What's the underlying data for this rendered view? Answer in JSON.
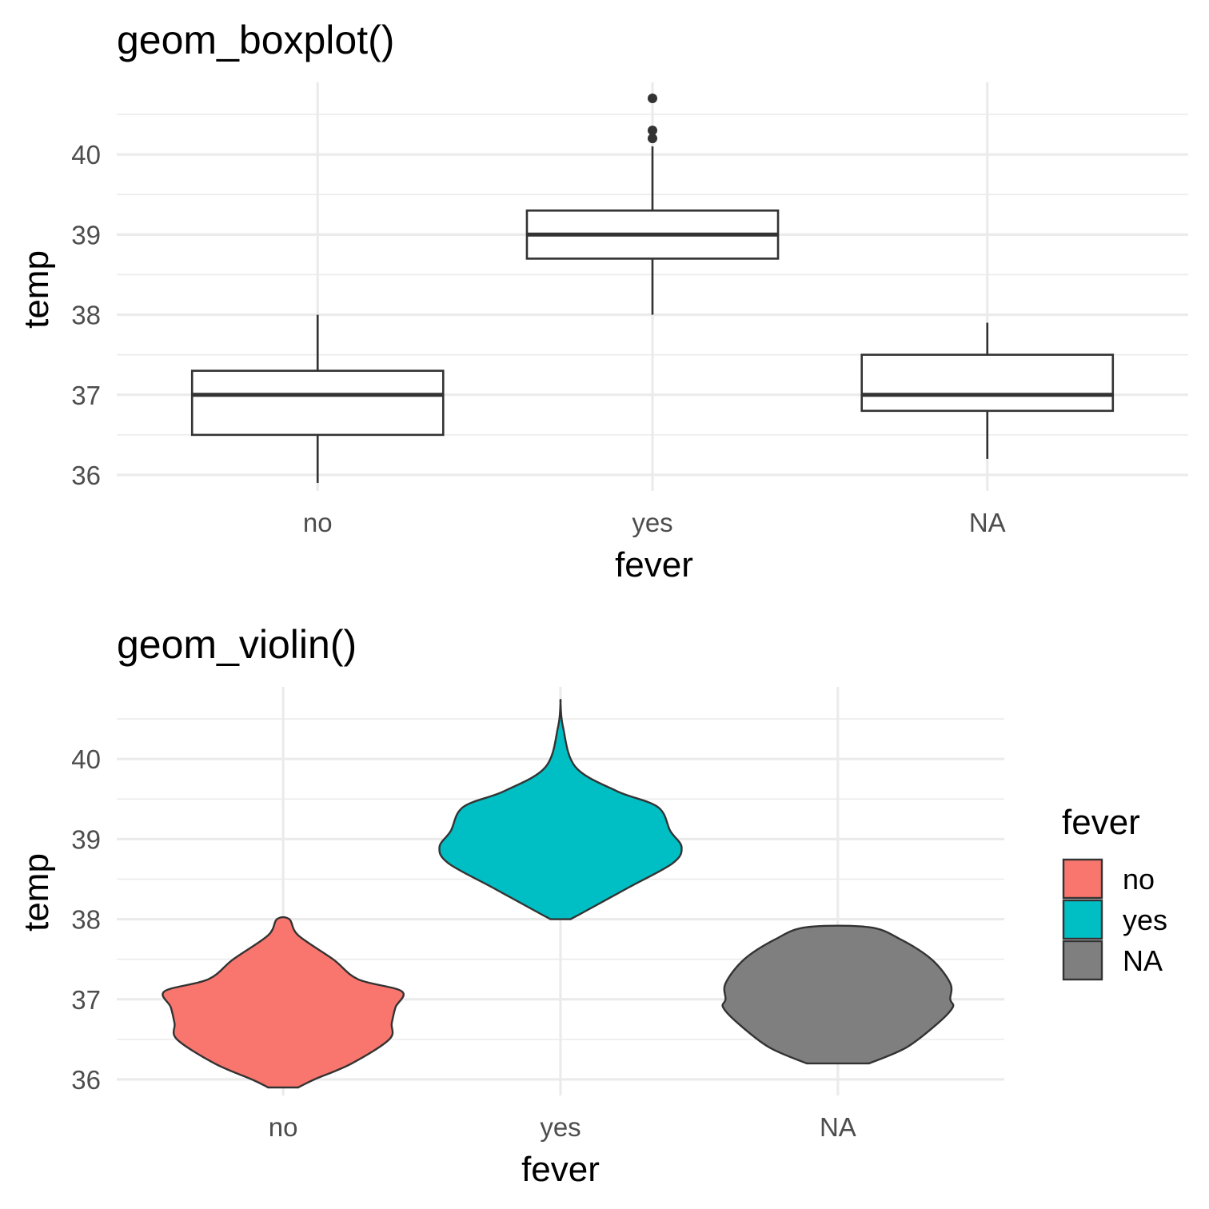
{
  "chart_data": [
    {
      "type": "boxplot",
      "title": "geom_boxplot()",
      "xlabel": "fever",
      "ylabel": "temp",
      "categories": [
        "no",
        "yes",
        "NA"
      ],
      "ylim": [
        35.8,
        40.9
      ],
      "yticks": [
        36,
        37,
        38,
        39,
        40
      ],
      "grid": true,
      "boxes": [
        {
          "category": "no",
          "min": 35.9,
          "q1": 36.5,
          "median": 37.0,
          "q3": 37.3,
          "max": 38.0,
          "outliers": []
        },
        {
          "category": "yes",
          "min": 38.0,
          "q1": 38.7,
          "median": 39.0,
          "q3": 39.3,
          "max": 40.1,
          "outliers": [
            40.2,
            40.3,
            40.7
          ]
        },
        {
          "category": "NA",
          "min": 36.2,
          "q1": 36.8,
          "median": 37.0,
          "q3": 37.5,
          "max": 37.9,
          "outliers": []
        }
      ]
    },
    {
      "type": "violin",
      "title": "geom_violin()",
      "xlabel": "fever",
      "ylabel": "temp",
      "categories": [
        "no",
        "yes",
        "NA"
      ],
      "ylim": [
        35.8,
        40.9
      ],
      "yticks": [
        36,
        37,
        38,
        39,
        40
      ],
      "grid": true,
      "legend": {
        "title": "fever",
        "position": "right",
        "entries": [
          {
            "label": "no",
            "color": "#f8766d"
          },
          {
            "label": "yes",
            "color": "#00bfc4"
          },
          {
            "label": "NA",
            "color": "#7f7f7f"
          }
        ]
      },
      "violins": [
        {
          "category": "no",
          "color": "#f8766d",
          "profile": [
            [
              35.9,
              0.12
            ],
            [
              36.0,
              0.25
            ],
            [
              36.2,
              0.55
            ],
            [
              36.5,
              0.85
            ],
            [
              36.7,
              0.87
            ],
            [
              36.9,
              0.9
            ],
            [
              37.1,
              0.95
            ],
            [
              37.25,
              0.6
            ],
            [
              37.5,
              0.4
            ],
            [
              37.8,
              0.12
            ],
            [
              38.0,
              0.05
            ]
          ]
        },
        {
          "category": "yes",
          "color": "#00bfc4",
          "profile": [
            [
              38.0,
              0.08
            ],
            [
              38.1,
              0.2
            ],
            [
              38.4,
              0.55
            ],
            [
              38.7,
              0.9
            ],
            [
              38.9,
              0.97
            ],
            [
              39.1,
              0.88
            ],
            [
              39.4,
              0.78
            ],
            [
              39.6,
              0.45
            ],
            [
              39.9,
              0.12
            ],
            [
              40.4,
              0.02
            ],
            [
              40.7,
              0.0
            ]
          ]
        },
        {
          "category": "NA",
          "color": "#7f7f7f",
          "profile": [
            [
              36.2,
              0.25
            ],
            [
              36.4,
              0.55
            ],
            [
              36.7,
              0.8
            ],
            [
              36.9,
              0.92
            ],
            [
              37.0,
              0.9
            ],
            [
              37.2,
              0.9
            ],
            [
              37.5,
              0.75
            ],
            [
              37.75,
              0.5
            ],
            [
              37.9,
              0.25
            ]
          ]
        }
      ]
    }
  ],
  "colors": {
    "no": "#f8766d",
    "yes": "#00bfc4",
    "NA": "#7f7f7f",
    "outline": "#333333"
  }
}
